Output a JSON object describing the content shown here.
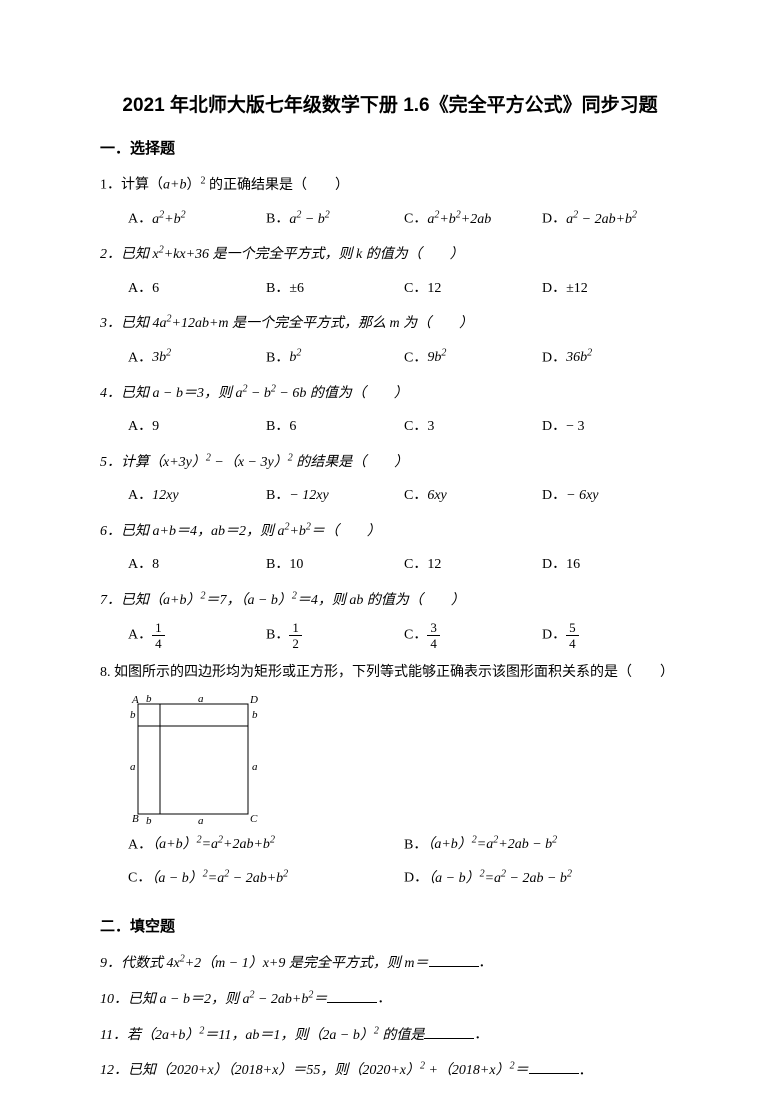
{
  "title": "2021 年北师大版七年级数学下册 1.6《完全平方公式》同步习题",
  "section1_heading": "一．选择题",
  "section2_heading": "二．填空题",
  "q1": {
    "stem_prefix": "1．计算（",
    "stem_expr": "a+b",
    "stem_suffix": "）² 的正确结果是（　　）",
    "opts": {
      "A": "a²+b²",
      "B": "a² − b²",
      "C": "a²+b²+2ab",
      "D": "a² − 2ab+b²"
    }
  },
  "q2": {
    "stem": "2．已知 x²+kx+36 是一个完全平方式，则 k 的值为（　　）",
    "opts": {
      "A": "6",
      "B": "±6",
      "C": "12",
      "D": "±12"
    }
  },
  "q3": {
    "stem": "3．已知 4a²+12ab+m 是一个完全平方式，那么 m 为（　　）",
    "opts": {
      "A": "3b²",
      "B": "b²",
      "C": "9b²",
      "D": "36b²"
    }
  },
  "q4": {
    "stem": "4．已知 a − b＝3，则 a² − b² − 6b 的值为（　　）",
    "opts": {
      "A": "9",
      "B": "6",
      "C": "3",
      "D": "− 3"
    }
  },
  "q5": {
    "stem": "5．计算（x+3y）² −（x − 3y）² 的结果是（　　）",
    "opts": {
      "A": "12xy",
      "B": "− 12xy",
      "C": "6xy",
      "D": "− 6xy"
    }
  },
  "q6": {
    "stem": "6．已知 a+b＝4，ab＝2，则 a²+b²＝（　　）",
    "opts": {
      "A": "8",
      "B": "10",
      "C": "12",
      "D": "16"
    }
  },
  "q7": {
    "stem": "7．已知（a+b）²＝7，（a − b）²＝4，则 ab 的值为（　　）",
    "opts": {
      "A": {
        "num": "1",
        "den": "4"
      },
      "B": {
        "num": "1",
        "den": "2"
      },
      "C": {
        "num": "3",
        "den": "4"
      },
      "D": {
        "num": "5",
        "den": "4"
      }
    }
  },
  "q8": {
    "stem": "8. 如图所示的四边形均为矩形或正方形，下列等式能够正确表示该图形面积关系的是（　　）",
    "diagram": {
      "width": 140,
      "height": 135,
      "outer_size": 120,
      "border_color": "#000000",
      "label_fontsize": 11,
      "labels": {
        "A": "A",
        "B": "B",
        "C": "C",
        "D": "D",
        "a": "a",
        "b": "b"
      }
    },
    "opts": {
      "A": "（a+b）²=a²+2ab+b²",
      "B": "（a+b）²=a²+2ab − b²",
      "C": "（a − b）²=a² − 2ab+b²",
      "D": "（a − b）²=a² − 2ab − b²"
    }
  },
  "q9": "9．代数式 4x²+2（m − 1）x+9 是完全平方式，则 m＝",
  "q10": "10．已知 a − b＝2，则 a² − 2ab+b²＝",
  "q11": "11．若（2a+b）²＝11，ab＝1，则（2a − b）² 的值是",
  "q12": "12．已知（2020+x）（2018+x）＝55，则（2020+x）² +（2018+x）²＝",
  "period": "．"
}
